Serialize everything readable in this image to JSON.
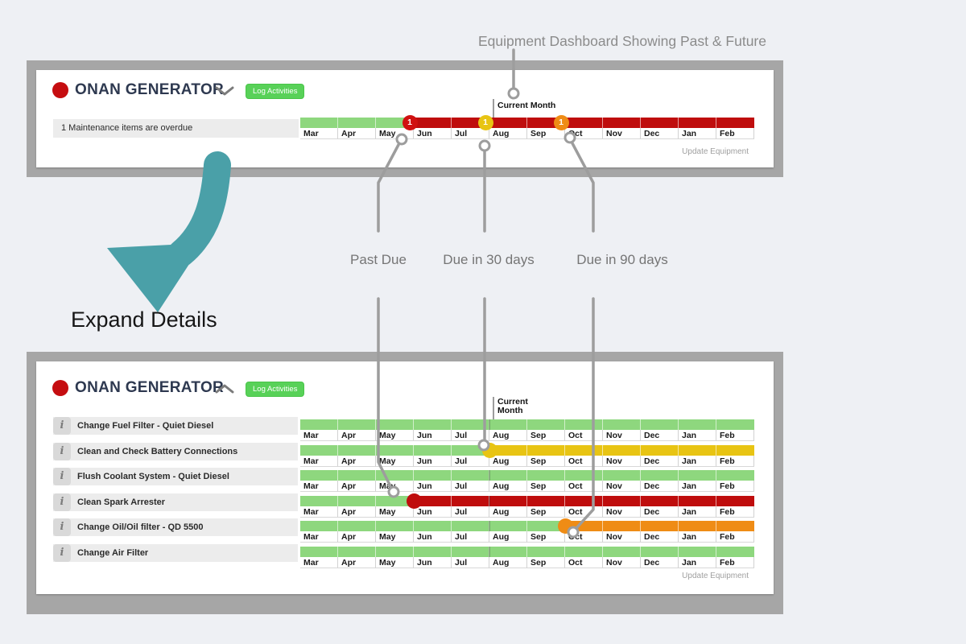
{
  "annotations": {
    "title": "Equipment Dashboard Showing Past & Future",
    "expand": "Expand Details"
  },
  "callouts": {
    "past_due": "Past Due",
    "due_30": "Due in 30 days",
    "due_90": "Due in 90 days"
  },
  "months": [
    "Mar",
    "Apr",
    "May",
    "Jun",
    "Jul",
    "Aug",
    "Sep",
    "Oct",
    "Nov",
    "Dec",
    "Jan",
    "Feb"
  ],
  "colors": {
    "green": "#8ed77e",
    "red": "#bf0d0d",
    "yellow": "#e8c413",
    "orange": "#ef8c15",
    "badge_red": "#d01111",
    "frame_gray": "#a6a6a6",
    "teal_arrow": "#4aa0a8",
    "callout_gray": "#9d9d9d"
  },
  "top_panel": {
    "name": "ONAN GENERATOR",
    "log_button": "Log Activities",
    "summary": "1 Maintenance items are overdue",
    "update_link": "Update Equipment",
    "current_month_label": "Current Month",
    "timeline": {
      "month_colors": [
        "green",
        "green",
        "green",
        "red",
        "red",
        "red",
        "red",
        "red",
        "red",
        "red",
        "red",
        "red"
      ],
      "badges": [
        {
          "count": "1",
          "color": "badge_red",
          "month_index": 3
        },
        {
          "count": "1",
          "color": "yellow",
          "month_index": 5
        },
        {
          "count": "1",
          "color": "orange",
          "month_index": 7
        }
      ]
    }
  },
  "bottom_panel": {
    "name": "ONAN GENERATOR",
    "log_button": "Log Activities",
    "update_link": "Update Equipment",
    "current_month_line1": "Current",
    "current_month_line2": "Month",
    "info_icon_glyph": "i",
    "rows": [
      {
        "label": "Change Fuel Filter - Quiet Diesel",
        "month_colors": [
          "green",
          "green",
          "green",
          "green",
          "green",
          "green",
          "green",
          "green",
          "green",
          "green",
          "green",
          "green"
        ]
      },
      {
        "label": "Clean and Check Battery Connections",
        "month_colors": [
          "green",
          "green",
          "green",
          "green",
          "green",
          "yellow",
          "yellow",
          "yellow",
          "yellow",
          "yellow",
          "yellow",
          "yellow"
        ],
        "dot": {
          "color": "yellow",
          "month_index": 5
        }
      },
      {
        "label": "Flush Coolant System - Quiet Diesel",
        "month_colors": [
          "green",
          "green",
          "green",
          "green",
          "green",
          "green",
          "green",
          "green",
          "green",
          "green",
          "green",
          "green"
        ]
      },
      {
        "label": "Clean Spark Arrester",
        "month_colors": [
          "green",
          "green",
          "green",
          "red",
          "red",
          "red",
          "red",
          "red",
          "red",
          "red",
          "red",
          "red"
        ],
        "dot": {
          "color": "red",
          "month_index": 3
        }
      },
      {
        "label": "Change Oil/Oil filter - QD 5500",
        "month_colors": [
          "green",
          "green",
          "green",
          "green",
          "green",
          "green",
          "green",
          "orange",
          "orange",
          "orange",
          "orange",
          "orange"
        ],
        "dot": {
          "color": "orange",
          "month_index": 7
        }
      },
      {
        "label": "Change Air Filter",
        "month_colors": [
          "green",
          "green",
          "green",
          "green",
          "green",
          "green",
          "green",
          "green",
          "green",
          "green",
          "green",
          "green"
        ]
      }
    ]
  }
}
